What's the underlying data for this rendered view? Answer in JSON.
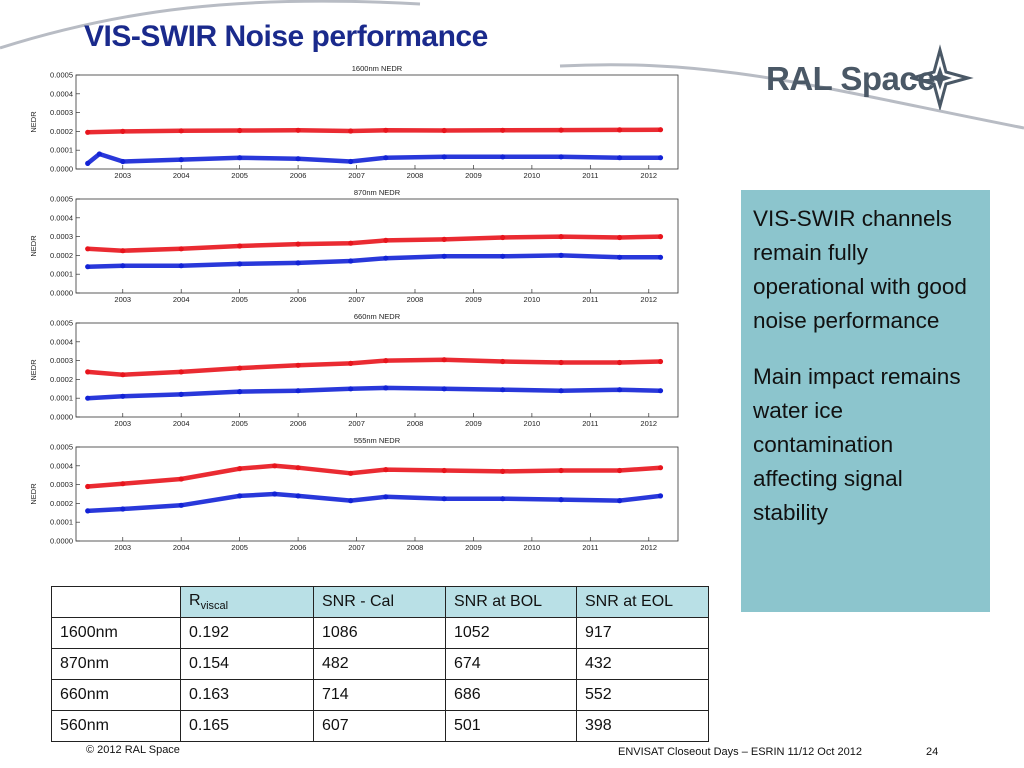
{
  "slide": {
    "title": "VIS-SWIR Noise performance",
    "logo_text": "RAL Space",
    "footer_left": "© 2012 RAL Space",
    "footer_right": "ENVISAT Closeout Days – ESRIN 11/12 Oct 2012",
    "page_number": "24"
  },
  "callout": {
    "para1": "VIS-SWIR channels remain fully operational with good noise performance",
    "para2": "Main impact remains water ice contamination affecting signal stability",
    "color": "#8cc5cd"
  },
  "table": {
    "headers": [
      "",
      "R",
      "SNR - Cal",
      "SNR at BOL",
      "SNR at EOL"
    ],
    "header_sub": "viscal",
    "rows": [
      [
        "1600nm",
        "0.192",
        "1086",
        "1052",
        " 917"
      ],
      [
        "870nm",
        "0.154",
        "482",
        " 674",
        " 432"
      ],
      [
        "660nm",
        "0.163",
        "714",
        " 686",
        " 552"
      ],
      [
        "560nm",
        "0.165",
        "607",
        " 501",
        " 398"
      ]
    ]
  },
  "chart_data": [
    {
      "type": "scatter",
      "title": "1600nm NEDR",
      "ylabel": "NEDR",
      "xlim": [
        2002.2,
        2012.5
      ],
      "ylim": [
        0,
        0.0005
      ],
      "yticks": [
        "0.0000",
        "0.0001",
        "0.0002",
        "0.0003",
        "0.0004",
        "0.0005"
      ],
      "xticks": [
        "2003",
        "2004",
        "2005",
        "2006",
        "2007",
        "2008",
        "2009",
        "2010",
        "2011",
        "2012"
      ],
      "series": [
        {
          "color": "#e8141c",
          "x": [
            2002.4,
            2003.0,
            2004.0,
            2005.0,
            2006.0,
            2006.9,
            2007.5,
            2008.5,
            2009.5,
            2010.5,
            2011.5,
            2012.2
          ],
          "y": [
            0.000195,
            0.0002,
            0.000203,
            0.000205,
            0.000206,
            0.000202,
            0.000206,
            0.000205,
            0.000206,
            0.000207,
            0.000208,
            0.000209
          ]
        },
        {
          "color": "#1222d6",
          "x": [
            2002.4,
            2002.6,
            2003.0,
            2004.0,
            2005.0,
            2006.0,
            2006.9,
            2007.5,
            2008.5,
            2009.5,
            2010.5,
            2011.5,
            2012.2
          ],
          "y": [
            3e-05,
            8e-05,
            4e-05,
            5e-05,
            6e-05,
            5.5e-05,
            4e-05,
            6e-05,
            6.5e-05,
            6.5e-05,
            6.5e-05,
            6e-05,
            6e-05
          ]
        }
      ]
    },
    {
      "type": "scatter",
      "title": "870nm NEDR",
      "ylabel": "NEDR",
      "xlim": [
        2002.2,
        2012.5
      ],
      "ylim": [
        0,
        0.0005
      ],
      "yticks": [
        "0.0000",
        "0.0001",
        "0.0002",
        "0.0003",
        "0.0004",
        "0.0005"
      ],
      "xticks": [
        "2003",
        "2004",
        "2005",
        "2006",
        "2007",
        "2008",
        "2009",
        "2010",
        "2011",
        "2012"
      ],
      "series": [
        {
          "color": "#e8141c",
          "x": [
            2002.4,
            2003.0,
            2004.0,
            2005.0,
            2006.0,
            2006.9,
            2007.5,
            2008.5,
            2009.5,
            2010.5,
            2011.5,
            2012.2
          ],
          "y": [
            0.000235,
            0.000225,
            0.000235,
            0.00025,
            0.00026,
            0.000265,
            0.00028,
            0.000285,
            0.000295,
            0.0003,
            0.000295,
            0.0003
          ]
        },
        {
          "color": "#1222d6",
          "x": [
            2002.4,
            2003.0,
            2004.0,
            2005.0,
            2006.0,
            2006.9,
            2007.5,
            2008.5,
            2009.5,
            2010.5,
            2011.5,
            2012.2
          ],
          "y": [
            0.00014,
            0.000145,
            0.000145,
            0.000155,
            0.00016,
            0.00017,
            0.000185,
            0.000195,
            0.000195,
            0.0002,
            0.00019,
            0.00019
          ]
        }
      ]
    },
    {
      "type": "scatter",
      "title": "660nm NEDR",
      "ylabel": "NEDR",
      "xlim": [
        2002.2,
        2012.5
      ],
      "ylim": [
        0,
        0.0005
      ],
      "yticks": [
        "0.0000",
        "0.0001",
        "0.0002",
        "0.0003",
        "0.0004",
        "0.0005"
      ],
      "xticks": [
        "2003",
        "2004",
        "2005",
        "2006",
        "2007",
        "2008",
        "2009",
        "2010",
        "2011",
        "2012"
      ],
      "series": [
        {
          "color": "#e8141c",
          "x": [
            2002.4,
            2003.0,
            2004.0,
            2005.0,
            2006.0,
            2006.9,
            2007.5,
            2008.5,
            2009.5,
            2010.5,
            2011.5,
            2012.2
          ],
          "y": [
            0.00024,
            0.000225,
            0.00024,
            0.00026,
            0.000275,
            0.000285,
            0.0003,
            0.000305,
            0.000295,
            0.00029,
            0.00029,
            0.000295
          ]
        },
        {
          "color": "#1222d6",
          "x": [
            2002.4,
            2003.0,
            2004.0,
            2005.0,
            2006.0,
            2006.9,
            2007.5,
            2008.5,
            2009.5,
            2010.5,
            2011.5,
            2012.2
          ],
          "y": [
            0.0001,
            0.00011,
            0.00012,
            0.000135,
            0.00014,
            0.00015,
            0.000155,
            0.00015,
            0.000145,
            0.00014,
            0.000145,
            0.00014
          ]
        }
      ]
    },
    {
      "type": "scatter",
      "title": "555nm NEDR",
      "ylabel": "NEDR",
      "xlim": [
        2002.2,
        2012.5
      ],
      "ylim": [
        0,
        0.0005
      ],
      "yticks": [
        "0.0000",
        "0.0001",
        "0.0002",
        "0.0003",
        "0.0004",
        "0.0005"
      ],
      "xticks": [
        "2003",
        "2004",
        "2005",
        "2006",
        "2007",
        "2008",
        "2009",
        "2010",
        "2011",
        "2012"
      ],
      "series": [
        {
          "color": "#e8141c",
          "x": [
            2002.4,
            2003.0,
            2004.0,
            2005.0,
            2005.6,
            2006.0,
            2006.9,
            2007.5,
            2008.5,
            2009.5,
            2010.5,
            2011.5,
            2012.2
          ],
          "y": [
            0.00029,
            0.000305,
            0.00033,
            0.000385,
            0.0004,
            0.00039,
            0.00036,
            0.00038,
            0.000375,
            0.00037,
            0.000375,
            0.000375,
            0.00039
          ]
        },
        {
          "color": "#1222d6",
          "x": [
            2002.4,
            2003.0,
            2004.0,
            2005.0,
            2005.6,
            2006.0,
            2006.9,
            2007.5,
            2008.5,
            2009.5,
            2010.5,
            2011.5,
            2012.2
          ],
          "y": [
            0.00016,
            0.00017,
            0.00019,
            0.00024,
            0.00025,
            0.00024,
            0.000215,
            0.000235,
            0.000225,
            0.000225,
            0.00022,
            0.000215,
            0.00024
          ]
        }
      ]
    }
  ]
}
